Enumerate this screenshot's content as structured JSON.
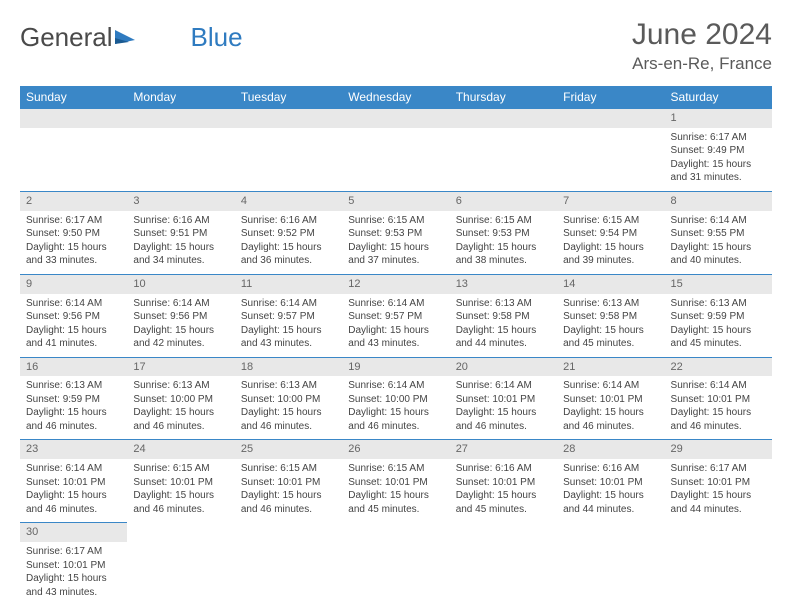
{
  "logo": {
    "text1": "General",
    "text2": "Blue"
  },
  "title": "June 2024",
  "location": "Ars-en-Re, France",
  "colors": {
    "header_bg": "#3a87c7",
    "header_fg": "#ffffff",
    "daynum_bg": "#e8e8e8",
    "daynum_fg": "#666666",
    "cell_border": "#3a87c7",
    "body_fg": "#444444",
    "logo_gray": "#4a4a4a",
    "logo_blue": "#2f7bc0"
  },
  "typography": {
    "title_fontsize": 30,
    "location_fontsize": 17,
    "th_fontsize": 12,
    "daynum_fontsize": 11,
    "cell_fontsize": 10
  },
  "weekdays": [
    "Sunday",
    "Monday",
    "Tuesday",
    "Wednesday",
    "Thursday",
    "Friday",
    "Saturday"
  ],
  "weeks": [
    [
      null,
      null,
      null,
      null,
      null,
      null,
      {
        "d": "1",
        "sr": "Sunrise: 6:17 AM",
        "ss": "Sunset: 9:49 PM",
        "dl1": "Daylight: 15 hours",
        "dl2": "and 31 minutes."
      }
    ],
    [
      {
        "d": "2",
        "sr": "Sunrise: 6:17 AM",
        "ss": "Sunset: 9:50 PM",
        "dl1": "Daylight: 15 hours",
        "dl2": "and 33 minutes."
      },
      {
        "d": "3",
        "sr": "Sunrise: 6:16 AM",
        "ss": "Sunset: 9:51 PM",
        "dl1": "Daylight: 15 hours",
        "dl2": "and 34 minutes."
      },
      {
        "d": "4",
        "sr": "Sunrise: 6:16 AM",
        "ss": "Sunset: 9:52 PM",
        "dl1": "Daylight: 15 hours",
        "dl2": "and 36 minutes."
      },
      {
        "d": "5",
        "sr": "Sunrise: 6:15 AM",
        "ss": "Sunset: 9:53 PM",
        "dl1": "Daylight: 15 hours",
        "dl2": "and 37 minutes."
      },
      {
        "d": "6",
        "sr": "Sunrise: 6:15 AM",
        "ss": "Sunset: 9:53 PM",
        "dl1": "Daylight: 15 hours",
        "dl2": "and 38 minutes."
      },
      {
        "d": "7",
        "sr": "Sunrise: 6:15 AM",
        "ss": "Sunset: 9:54 PM",
        "dl1": "Daylight: 15 hours",
        "dl2": "and 39 minutes."
      },
      {
        "d": "8",
        "sr": "Sunrise: 6:14 AM",
        "ss": "Sunset: 9:55 PM",
        "dl1": "Daylight: 15 hours",
        "dl2": "and 40 minutes."
      }
    ],
    [
      {
        "d": "9",
        "sr": "Sunrise: 6:14 AM",
        "ss": "Sunset: 9:56 PM",
        "dl1": "Daylight: 15 hours",
        "dl2": "and 41 minutes."
      },
      {
        "d": "10",
        "sr": "Sunrise: 6:14 AM",
        "ss": "Sunset: 9:56 PM",
        "dl1": "Daylight: 15 hours",
        "dl2": "and 42 minutes."
      },
      {
        "d": "11",
        "sr": "Sunrise: 6:14 AM",
        "ss": "Sunset: 9:57 PM",
        "dl1": "Daylight: 15 hours",
        "dl2": "and 43 minutes."
      },
      {
        "d": "12",
        "sr": "Sunrise: 6:14 AM",
        "ss": "Sunset: 9:57 PM",
        "dl1": "Daylight: 15 hours",
        "dl2": "and 43 minutes."
      },
      {
        "d": "13",
        "sr": "Sunrise: 6:13 AM",
        "ss": "Sunset: 9:58 PM",
        "dl1": "Daylight: 15 hours",
        "dl2": "and 44 minutes."
      },
      {
        "d": "14",
        "sr": "Sunrise: 6:13 AM",
        "ss": "Sunset: 9:58 PM",
        "dl1": "Daylight: 15 hours",
        "dl2": "and 45 minutes."
      },
      {
        "d": "15",
        "sr": "Sunrise: 6:13 AM",
        "ss": "Sunset: 9:59 PM",
        "dl1": "Daylight: 15 hours",
        "dl2": "and 45 minutes."
      }
    ],
    [
      {
        "d": "16",
        "sr": "Sunrise: 6:13 AM",
        "ss": "Sunset: 9:59 PM",
        "dl1": "Daylight: 15 hours",
        "dl2": "and 46 minutes."
      },
      {
        "d": "17",
        "sr": "Sunrise: 6:13 AM",
        "ss": "Sunset: 10:00 PM",
        "dl1": "Daylight: 15 hours",
        "dl2": "and 46 minutes."
      },
      {
        "d": "18",
        "sr": "Sunrise: 6:13 AM",
        "ss": "Sunset: 10:00 PM",
        "dl1": "Daylight: 15 hours",
        "dl2": "and 46 minutes."
      },
      {
        "d": "19",
        "sr": "Sunrise: 6:14 AM",
        "ss": "Sunset: 10:00 PM",
        "dl1": "Daylight: 15 hours",
        "dl2": "and 46 minutes."
      },
      {
        "d": "20",
        "sr": "Sunrise: 6:14 AM",
        "ss": "Sunset: 10:01 PM",
        "dl1": "Daylight: 15 hours",
        "dl2": "and 46 minutes."
      },
      {
        "d": "21",
        "sr": "Sunrise: 6:14 AM",
        "ss": "Sunset: 10:01 PM",
        "dl1": "Daylight: 15 hours",
        "dl2": "and 46 minutes."
      },
      {
        "d": "22",
        "sr": "Sunrise: 6:14 AM",
        "ss": "Sunset: 10:01 PM",
        "dl1": "Daylight: 15 hours",
        "dl2": "and 46 minutes."
      }
    ],
    [
      {
        "d": "23",
        "sr": "Sunrise: 6:14 AM",
        "ss": "Sunset: 10:01 PM",
        "dl1": "Daylight: 15 hours",
        "dl2": "and 46 minutes."
      },
      {
        "d": "24",
        "sr": "Sunrise: 6:15 AM",
        "ss": "Sunset: 10:01 PM",
        "dl1": "Daylight: 15 hours",
        "dl2": "and 46 minutes."
      },
      {
        "d": "25",
        "sr": "Sunrise: 6:15 AM",
        "ss": "Sunset: 10:01 PM",
        "dl1": "Daylight: 15 hours",
        "dl2": "and 46 minutes."
      },
      {
        "d": "26",
        "sr": "Sunrise: 6:15 AM",
        "ss": "Sunset: 10:01 PM",
        "dl1": "Daylight: 15 hours",
        "dl2": "and 45 minutes."
      },
      {
        "d": "27",
        "sr": "Sunrise: 6:16 AM",
        "ss": "Sunset: 10:01 PM",
        "dl1": "Daylight: 15 hours",
        "dl2": "and 45 minutes."
      },
      {
        "d": "28",
        "sr": "Sunrise: 6:16 AM",
        "ss": "Sunset: 10:01 PM",
        "dl1": "Daylight: 15 hours",
        "dl2": "and 44 minutes."
      },
      {
        "d": "29",
        "sr": "Sunrise: 6:17 AM",
        "ss": "Sunset: 10:01 PM",
        "dl1": "Daylight: 15 hours",
        "dl2": "and 44 minutes."
      }
    ],
    [
      {
        "d": "30",
        "sr": "Sunrise: 6:17 AM",
        "ss": "Sunset: 10:01 PM",
        "dl1": "Daylight: 15 hours",
        "dl2": "and 43 minutes."
      },
      null,
      null,
      null,
      null,
      null,
      null
    ]
  ]
}
